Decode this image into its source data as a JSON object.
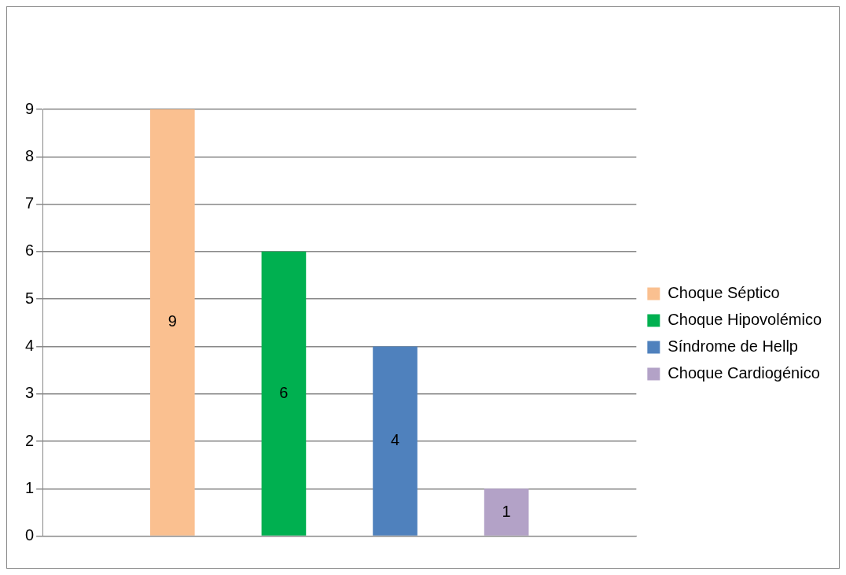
{
  "chart_data": {
    "type": "bar",
    "categories": [
      null
    ],
    "series": [
      {
        "name": "Choque Séptico",
        "color": "#fac090",
        "values": [
          9
        ]
      },
      {
        "name": "Choque Hipovolémico",
        "color": "#00b050",
        "values": [
          6
        ]
      },
      {
        "name": "Síndrome de Hellp",
        "color": "#4f81bd",
        "values": [
          4
        ]
      },
      {
        "name": "Choque Cardiogénico",
        "color": "#b3a2c7",
        "values": [
          1
        ]
      }
    ],
    "ylim": [
      0,
      9
    ],
    "yticks": [
      0,
      1,
      2,
      3,
      4,
      5,
      6,
      7,
      8,
      9
    ],
    "grid": "y",
    "legend": "right",
    "data_labels": true
  }
}
